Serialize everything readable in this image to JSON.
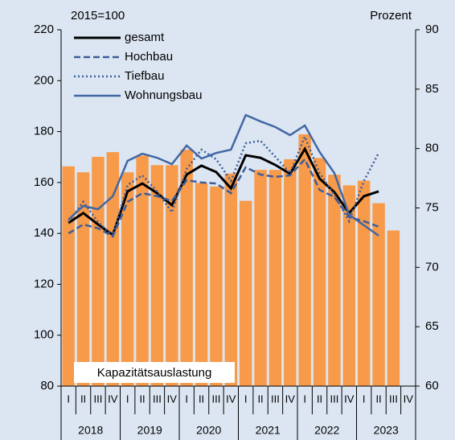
{
  "chart_data": {
    "type": "bar_line",
    "left_axis_label": "2015=100",
    "right_axis_label": "Prozent",
    "bar_label": "Kapazitätsauslastung",
    "categories": [
      "I",
      "II",
      "III",
      "IV",
      "I",
      "II",
      "III",
      "IV",
      "I",
      "II",
      "III",
      "IV",
      "I",
      "II",
      "III",
      "IV",
      "I",
      "II",
      "III",
      "IV",
      "I",
      "II",
      "III",
      "IV"
    ],
    "years": [
      "2018",
      "2019",
      "2020",
      "2021",
      "2022",
      "2023"
    ],
    "bars": {
      "name": "Kapazitätsauslastung",
      "color": "#f79a4a",
      "axis": "y2",
      "values": [
        78.5,
        78.0,
        79.3,
        79.7,
        78.0,
        79.4,
        78.6,
        78.6,
        79.9,
        77.1,
        76.8,
        77.9,
        75.6,
        78.2,
        78.2,
        79.1,
        81.2,
        79.2,
        77.8,
        76.9,
        77.3,
        75.4,
        73.1,
        null
      ]
    },
    "series": [
      {
        "name": "gesamt",
        "color": "#000000",
        "style": "solid",
        "values": [
          144.1,
          148,
          143.5,
          139.4,
          156.5,
          159.6,
          155.8,
          151.1,
          163.1,
          166.6,
          164.1,
          157.7,
          170.7,
          169.7,
          166.9,
          163.4,
          173.2,
          161.5,
          156.2,
          148,
          154.6,
          156.5,
          null,
          null
        ]
      },
      {
        "name": "Hochbau",
        "color": "#3d5d9a",
        "style": "dashed",
        "values": [
          140,
          143.5,
          142,
          138.8,
          152.4,
          155.8,
          154.6,
          152.7,
          160.9,
          160,
          159.6,
          155.8,
          166,
          163.1,
          162.2,
          162.8,
          169.1,
          157.1,
          154.3,
          146.4,
          144.8,
          142.6,
          null,
          null
        ]
      },
      {
        "name": "Tiefbau",
        "color": "#3d5d9a",
        "style": "dotted",
        "values": [
          144.5,
          152.4,
          144.5,
          139.1,
          159,
          162.8,
          156.5,
          148.3,
          165.3,
          172.9,
          169.1,
          160.6,
          175.4,
          176.4,
          170.1,
          163.7,
          178,
          163.7,
          155.2,
          144.8,
          160.6,
          171.6,
          null,
          null
        ]
      },
      {
        "name": "Wohnungsbau",
        "color": "#4267a3",
        "style": "solid",
        "values": [
          145.4,
          150.8,
          149.5,
          154.6,
          168.5,
          171.3,
          169.7,
          167.2,
          174.5,
          169.4,
          171.6,
          172.9,
          186.5,
          184,
          181.8,
          178.6,
          182.4,
          172,
          163.7,
          147.3,
          143.2,
          139.1,
          null,
          null
        ]
      }
    ],
    "ylim": [
      80,
      220
    ],
    "yticks": [
      80,
      100,
      120,
      140,
      160,
      180,
      200,
      220
    ],
    "y2lim": [
      60,
      90
    ],
    "y2ticks": [
      60,
      65,
      70,
      75,
      80,
      85,
      90
    ]
  }
}
